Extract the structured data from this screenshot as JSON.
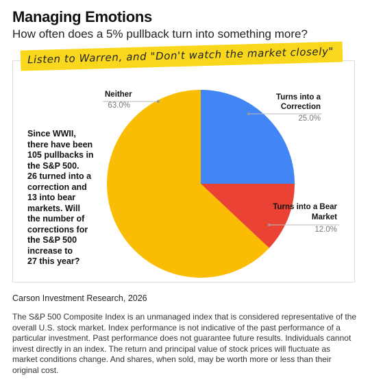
{
  "chart_data": {
    "type": "pie",
    "title": "Managing Emotions",
    "subtitle": "How often does a 5% pullback turn into something more?",
    "banner": "Listen to Warren, and \"Don't watch the market closely\"",
    "categories": [
      "Turns into a Correction",
      "Turns into a Bear Market",
      "Neither"
    ],
    "values": [
      25,
      12,
      63
    ],
    "value_labels": [
      "25.0%",
      "12.0%",
      "63.0%"
    ],
    "colors": [
      "#4285f4",
      "#ea4335",
      "#fbbc04"
    ],
    "annotation": [
      "Since WWII,",
      "there have been",
      "105 pullbacks in",
      "the S&P 500.",
      "26 turned into a",
      "correction and",
      "13 into bear",
      "markets. Will",
      "the number of",
      "corrections for",
      "the S&P 500",
      "increase to",
      "27 this year?"
    ]
  },
  "source": "Carson Investment Research, 2026",
  "disclaimer": "The S&P 500 Composite Index is an unmanaged index that is considered representative of the overall U.S. stock market. Index performance is not indicative of the past performance of a particular investment. Past performance does not guarantee future results. Individuals cannot invest directly in an index. The return and principal value of stock prices will fluctuate as market conditions change. And shares, when sold, may be worth more or less than their original cost."
}
